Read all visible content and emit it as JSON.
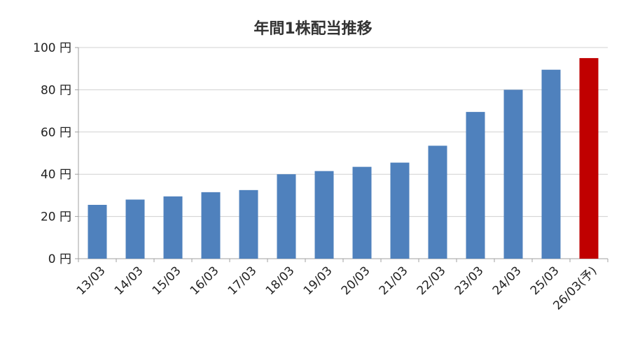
{
  "chart_data": {
    "type": "bar",
    "title": "年間1株配当推移",
    "categories": [
      "13/03",
      "14/03",
      "15/03",
      "16/03",
      "17/03",
      "18/03",
      "19/03",
      "20/03",
      "21/03",
      "22/03",
      "23/03",
      "24/03",
      "25/03",
      "26/03(予)"
    ],
    "values": [
      25.5,
      28,
      29.5,
      31.5,
      32.5,
      40,
      41.5,
      43.5,
      45.5,
      53.5,
      69.5,
      80,
      89.5,
      95
    ],
    "highlight_index": 13,
    "ylim": [
      0,
      100
    ],
    "yticks": [
      0,
      20,
      40,
      60,
      80,
      100
    ],
    "ytick_labels": [
      "0 円",
      "20 円",
      "40 円",
      "60 円",
      "80 円",
      "100 円"
    ],
    "grid": true,
    "colors": {
      "bar": "#4f81bd",
      "highlight": "#c00000"
    }
  }
}
